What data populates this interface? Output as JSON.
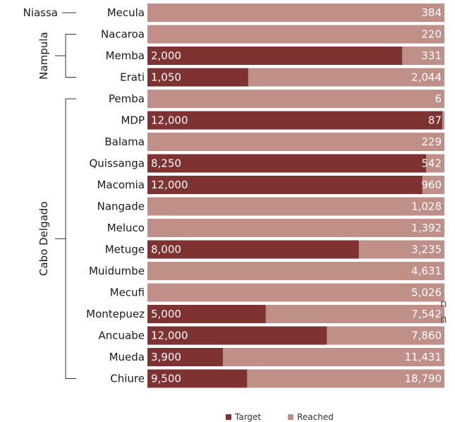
{
  "chart_data": {
    "type": "bar",
    "orientation": "horizontal",
    "stacked": true,
    "categories": [
      "Mecula",
      "Nacaroa",
      "Memba",
      "Erati",
      "Pemba",
      "MDP",
      "Balama",
      "Quissanga",
      "Macomia",
      "Nangade",
      "Meluco",
      "Metuge",
      "Muidumbe",
      "Mecufi",
      "Montepuez",
      "Ancuabe",
      "Mueda",
      "Chiure"
    ],
    "series": [
      {
        "name": "Target",
        "color": "#7e3232",
        "values": [
          0,
          0,
          2000,
          1050,
          0,
          12000,
          0,
          8250,
          12000,
          0,
          0,
          8000,
          0,
          0,
          5000,
          12000,
          3900,
          9500
        ],
        "labels": [
          "",
          "",
          "2,000",
          "1,050",
          "",
          "12,000",
          "",
          "8,250",
          "12,000",
          "",
          "",
          "8,000",
          "",
          "",
          "5,000",
          "12,000",
          "3,900",
          "9,500"
        ]
      },
      {
        "name": "Reached",
        "color": "#bf8f88",
        "values": [
          384,
          220,
          331,
          2044,
          6,
          87,
          229,
          542,
          960,
          1028,
          1392,
          3235,
          4631,
          5026,
          7542,
          7860,
          11431,
          18790
        ],
        "labels": [
          "384",
          "220",
          "331",
          "2,044",
          "6",
          "87",
          "229",
          "542",
          "960",
          "1,028",
          "1,392",
          "3,235",
          "4,631",
          "5,026",
          "7,542",
          "7,860",
          "11,431",
          "18,790"
        ]
      }
    ],
    "groups": [
      {
        "name": "Niassa",
        "from": 0,
        "to": 0
      },
      {
        "name": "Nampula",
        "from": 1,
        "to": 3
      },
      {
        "name": "Cabo Delgado",
        "from": 4,
        "to": 17
      }
    ],
    "cut_text": [
      "n",
      "n"
    ],
    "legend_position": "bottom"
  }
}
